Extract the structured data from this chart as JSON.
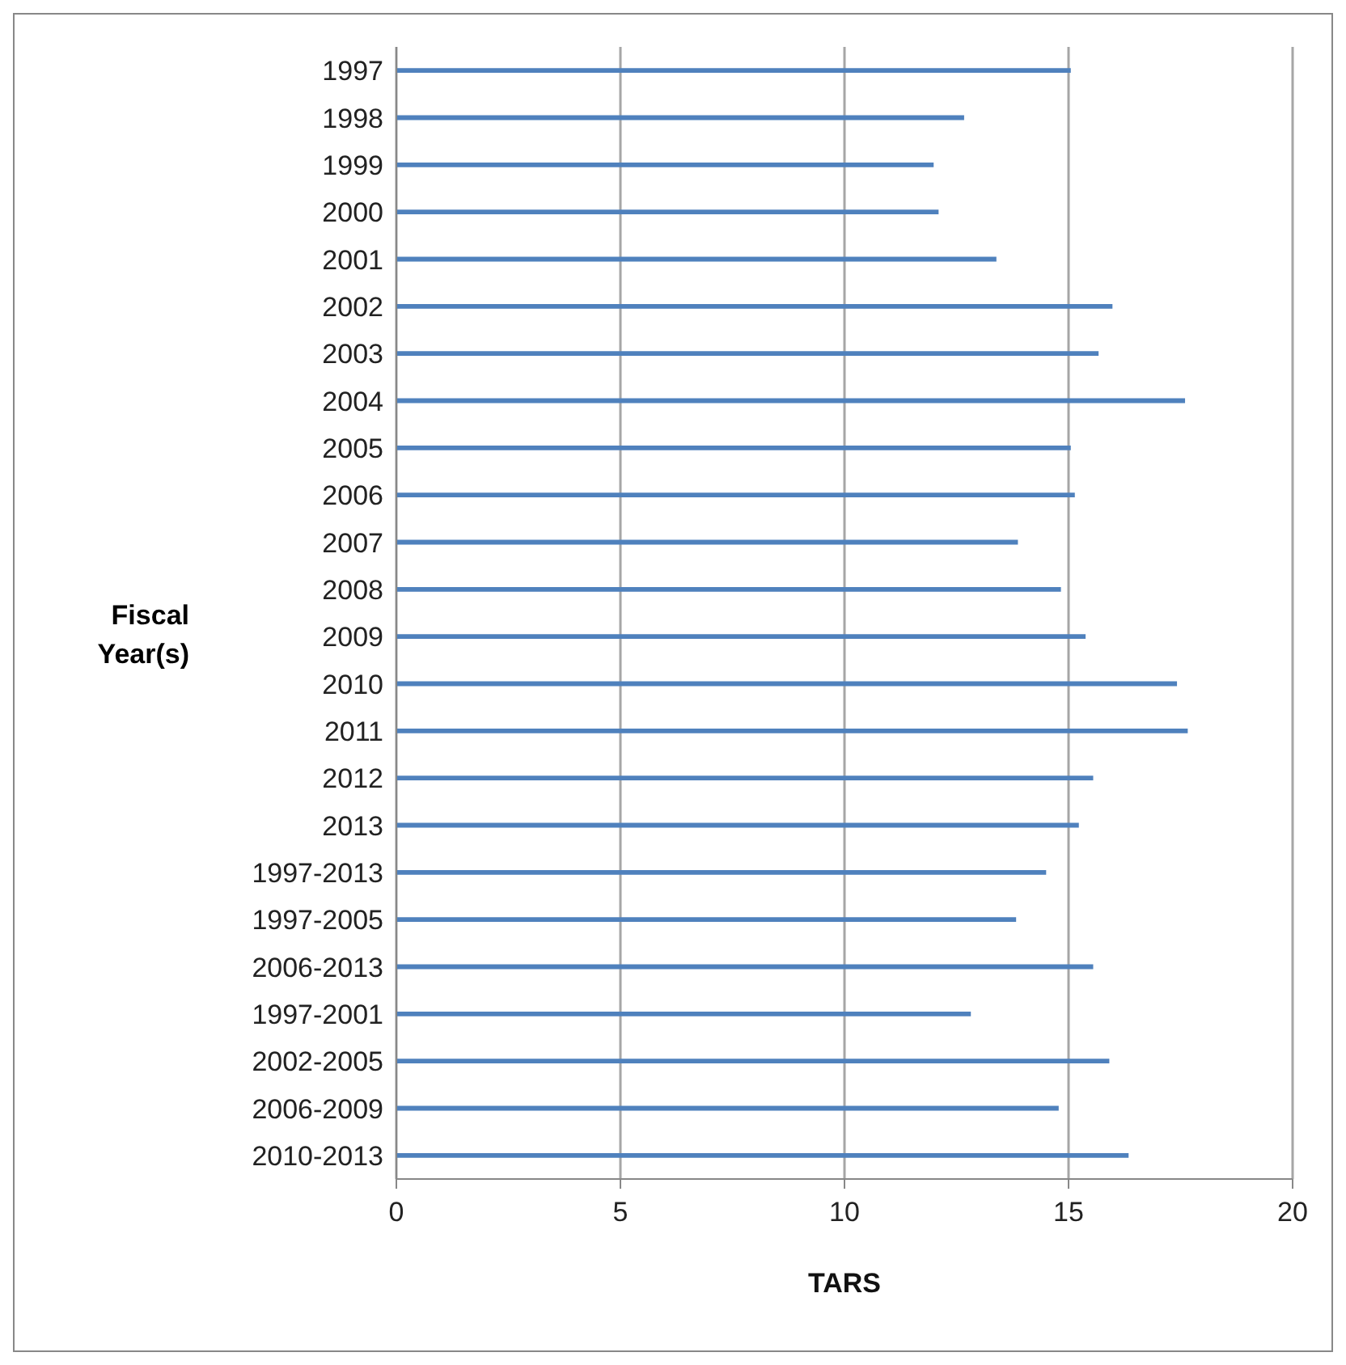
{
  "chart_data": {
    "type": "bar",
    "orientation": "horizontal",
    "xlabel": "TARS",
    "ylabel": "Fiscal Year(s)",
    "categories": [
      "1997",
      "1998",
      "1999",
      "2000",
      "2001",
      "2002",
      "2003",
      "2004",
      "2005",
      "2006",
      "2007",
      "2008",
      "2009",
      "2010",
      "2011",
      "2012",
      "2013",
      "1997-2013",
      "1997-2005",
      "2006-2013",
      "1997-2001",
      "2002-2005",
      "2006-2009",
      "2010-2013"
    ],
    "values": [
      15.05,
      12.67,
      11.99,
      12.1,
      13.39,
      15.98,
      15.67,
      17.6,
      15.05,
      15.14,
      13.87,
      14.83,
      15.38,
      17.42,
      17.66,
      15.55,
      15.23,
      14.5,
      13.83,
      15.55,
      12.82,
      15.91,
      14.78,
      16.34
    ],
    "color": "#4f81bd",
    "xlim": [
      0,
      20
    ],
    "xticks": [
      0,
      5,
      10,
      15,
      20
    ],
    "grid": "x"
  }
}
